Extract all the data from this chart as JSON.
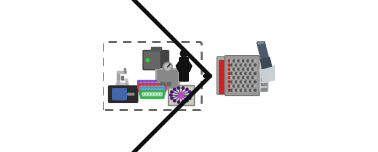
{
  "fig_width": 3.78,
  "fig_height": 1.52,
  "dpi": 100,
  "bg_color": "#ffffff",
  "box_edge_color": "#666666",
  "arrow_color": "#111111",
  "plate_gray": "#9a9a9a",
  "plate_light": "#c8c8c8",
  "well_red": "#cc2222",
  "well_dark1": "#666666",
  "well_dark2": "#aaaaaa",
  "strip_bg": "#bbbbbb",
  "pip_body": "#4a5a6a",
  "pip_head": "#3a4a55",
  "pip_tip": "#c8cfd5",
  "pip_barrel": "#7a8a96"
}
